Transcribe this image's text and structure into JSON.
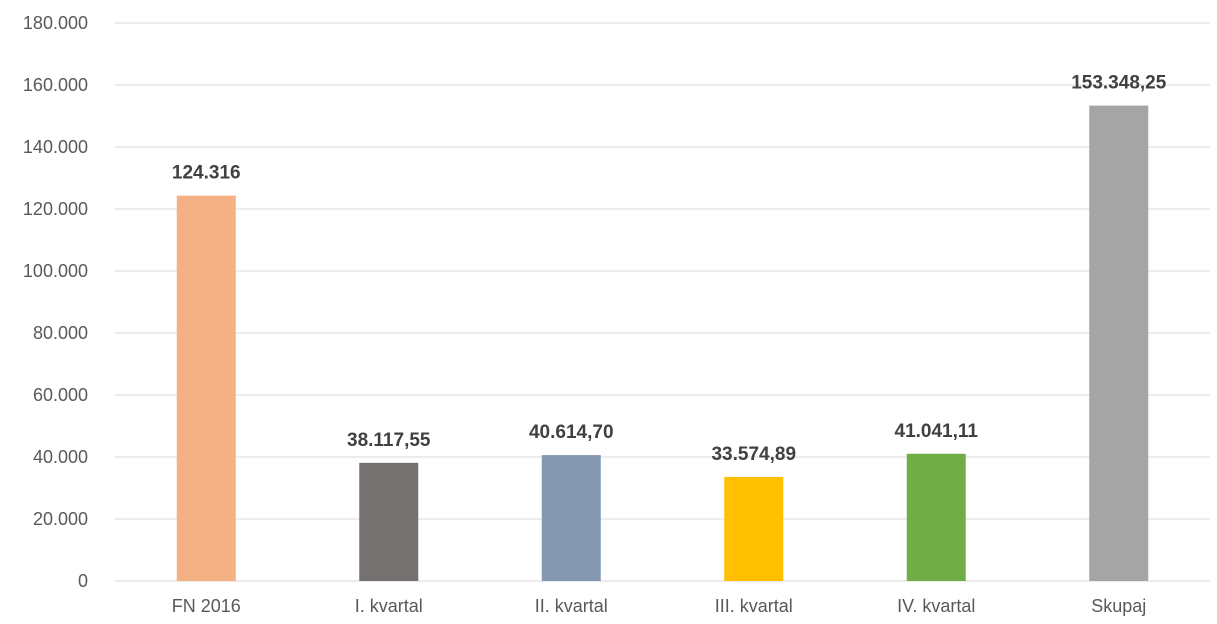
{
  "chart_data": {
    "type": "bar",
    "title": "",
    "xlabel": "",
    "ylabel": "",
    "categories": [
      "FN 2016",
      "I. kvartal",
      "II. kvartal",
      "III. kvartal",
      "IV. kvartal",
      "Skupaj"
    ],
    "values": [
      124316,
      38117.55,
      40614.7,
      33574.89,
      41041.11,
      153348.25
    ],
    "data_labels": [
      "124.316",
      "38.117,55",
      "40.614,70",
      "33.574,89",
      "41.041,11",
      "153.348,25"
    ],
    "colors": [
      "#f4b183",
      "#767171",
      "#8497b0",
      "#ffc000",
      "#70ad47",
      "#a5a5a5"
    ],
    "ylim": [
      0,
      180000
    ],
    "yticks": [
      0,
      20000,
      40000,
      60000,
      80000,
      100000,
      120000,
      140000,
      160000,
      180000
    ],
    "ytick_labels": [
      "0",
      "20.000",
      "40.000",
      "60.000",
      "80.000",
      "100.000",
      "120.000",
      "140.000",
      "160.000",
      "180.000"
    ],
    "grid": true,
    "legend": "none"
  }
}
